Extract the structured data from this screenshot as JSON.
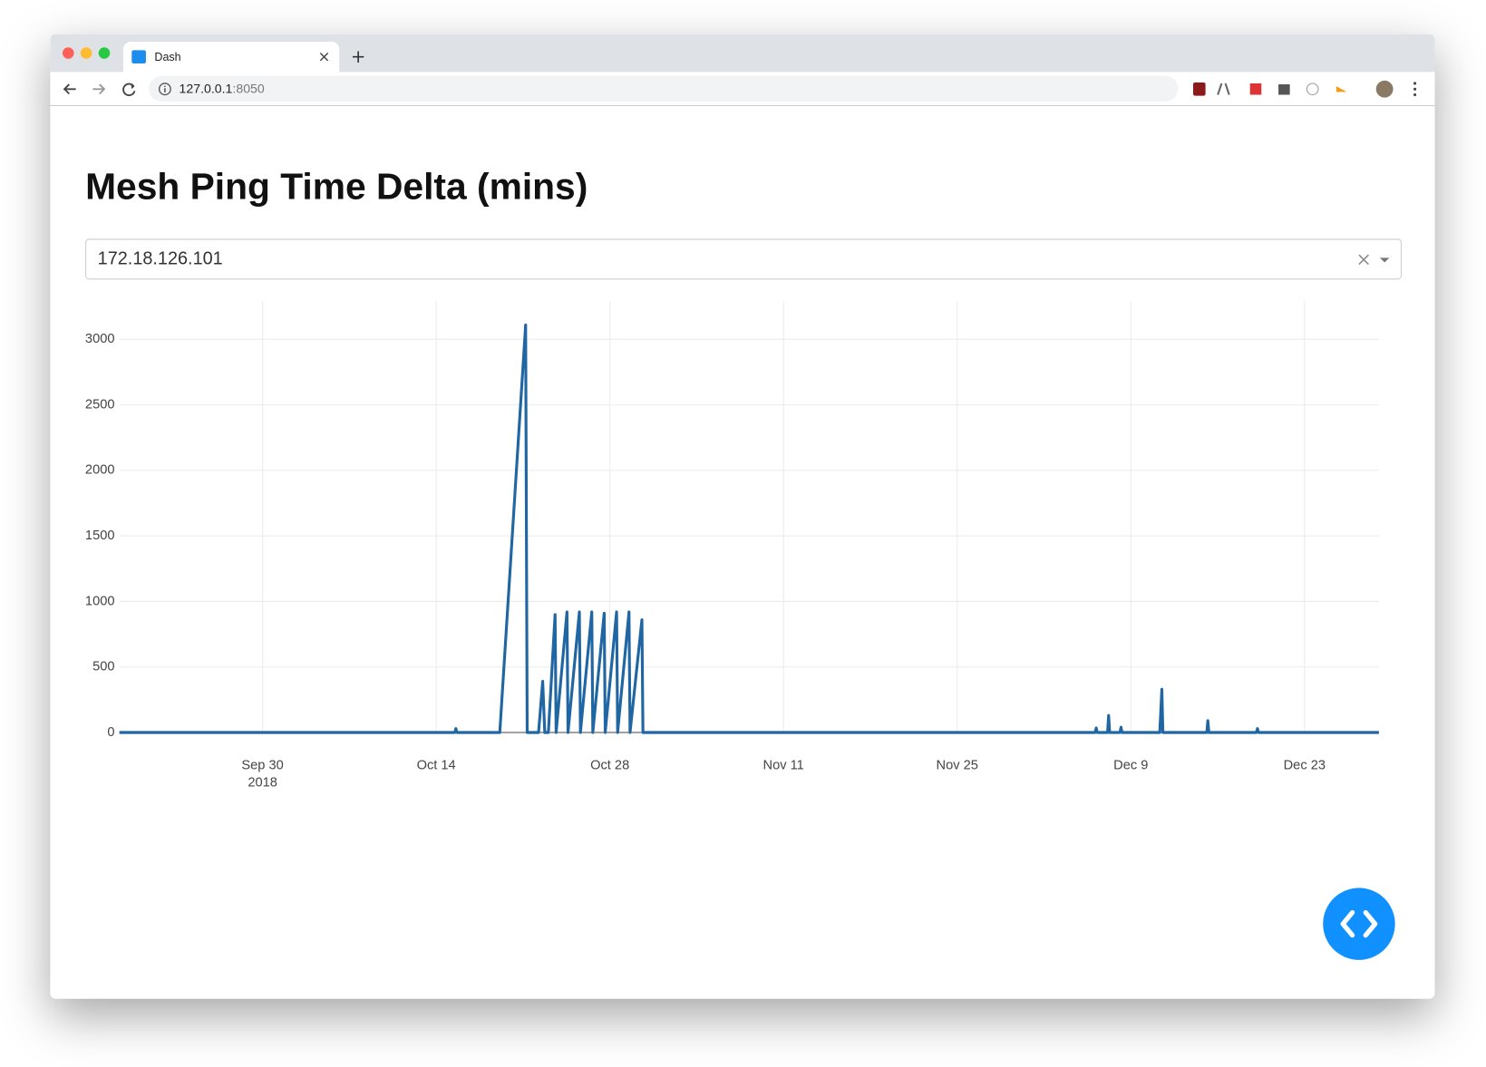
{
  "browser": {
    "tab_title": "Dash",
    "url_host": "127.0.0.1",
    "url_port": ":8050"
  },
  "app": {
    "title": "Mesh Ping Time Delta (mins)",
    "dropdown_value": "172.18.126.101"
  },
  "chart_data": {
    "type": "line",
    "color": "#1f66a3",
    "grid": true,
    "x": [
      "2018-09-18 11:00",
      "2018-10-15 12:00",
      "2018-10-15 14:00",
      "2018-10-15 16:00",
      "2018-10-19 03:00",
      "2018-10-21 05:00",
      "2018-10-21 08:00",
      "2018-10-22 06:00",
      "2018-10-22 14:00",
      "2018-10-22 18:00",
      "2018-10-23 01:00",
      "2018-10-23 14:00",
      "2018-10-23 16:00",
      "2018-10-24 13:00",
      "2018-10-24 15:00",
      "2018-10-25 13:00",
      "2018-10-25 15:00",
      "2018-10-26 13:00",
      "2018-10-26 15:00",
      "2018-10-27 13:00",
      "2018-10-27 15:00",
      "2018-10-28 13:00",
      "2018-10-28 15:00",
      "2018-10-29 13:00",
      "2018-10-29 15:00",
      "2018-10-30 14:00",
      "2018-10-30 16:00",
      "2018-12-06 03:00",
      "2018-12-06 05:00",
      "2018-12-06 07:00",
      "2018-12-07 03:00",
      "2018-12-07 05:00",
      "2018-12-07 07:00",
      "2018-12-08 03:00",
      "2018-12-08 05:00",
      "2018-12-08 07:00",
      "2018-12-11 08:00",
      "2018-12-11 12:00",
      "2018-12-11 14:00",
      "2018-12-15 03:00",
      "2018-12-15 05:00",
      "2018-12-15 07:00",
      "2018-12-19 03:00",
      "2018-12-19 05:00",
      "2018-12-19 07:00",
      "2018-12-29 00:00"
    ],
    "values": [
      0,
      0,
      30,
      0,
      0,
      3110,
      0,
      0,
      390,
      0,
      0,
      900,
      0,
      920,
      0,
      920,
      0,
      920,
      0,
      910,
      0,
      920,
      0,
      920,
      0,
      860,
      0,
      0,
      35,
      0,
      0,
      130,
      0,
      0,
      40,
      0,
      0,
      330,
      0,
      0,
      90,
      0,
      0,
      30,
      0,
      0
    ],
    "xlim": [
      "2018-09-18 11:00",
      "2018-12-29 00:00"
    ],
    "xticks": [
      {
        "value": "2018-09-30",
        "label": "Sep 30"
      },
      {
        "value": "2018-10-14",
        "label": "Oct 14"
      },
      {
        "value": "2018-10-28",
        "label": "Oct 28"
      },
      {
        "value": "2018-11-11",
        "label": "Nov 11"
      },
      {
        "value": "2018-11-25",
        "label": "Nov 25"
      },
      {
        "value": "2018-12-09",
        "label": "Dec 9"
      },
      {
        "value": "2018-12-23",
        "label": "Dec 23"
      }
    ],
    "x_year_label": "2018",
    "ylim": [
      0,
      3290
    ],
    "yticks": [
      0,
      500,
      1000,
      1500,
      2000,
      2500,
      3000
    ]
  }
}
